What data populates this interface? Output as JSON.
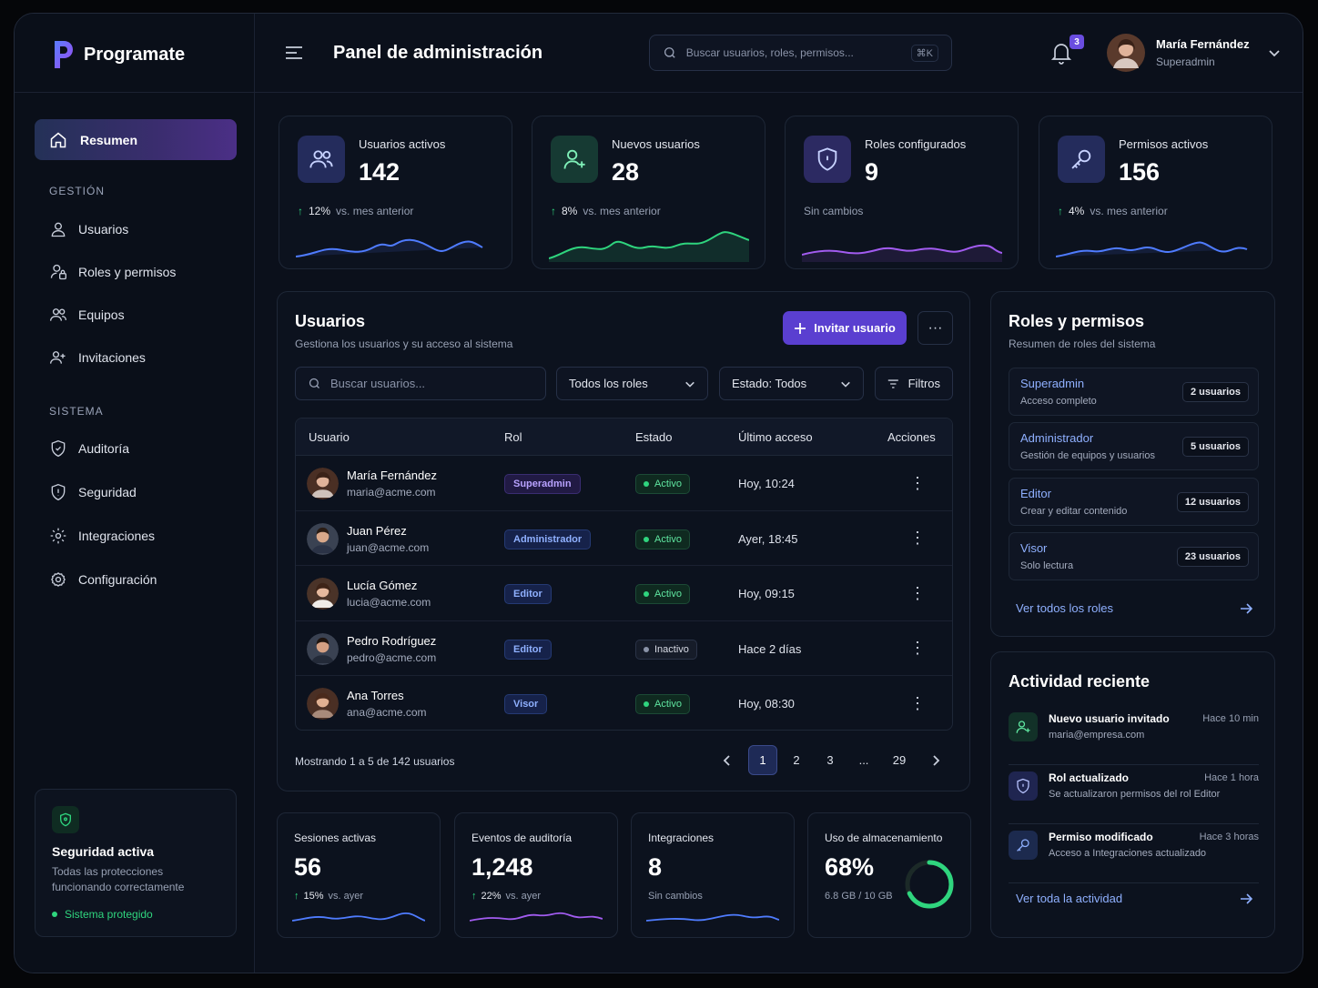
{
  "app": {
    "brand": "Programate",
    "page_title": "Panel de administración"
  },
  "search": {
    "placeholder": "Buscar usuarios, roles, permisos...",
    "shortcut": "⌘K"
  },
  "notifications": {
    "count": "3"
  },
  "user": {
    "name": "María Fernández",
    "role": "Superadmin"
  },
  "sidebar": {
    "active": "Resumen",
    "section_gestion": "GESTIÓN",
    "gestion": [
      "Usuarios",
      "Roles y permisos",
      "Equipos",
      "Invitaciones"
    ],
    "section_sistema": "SISTEMA",
    "sistema": [
      "Auditoría",
      "Seguridad",
      "Integraciones",
      "Configuración"
    ],
    "security_card": {
      "title": "Seguridad activa",
      "subtitle": "Todas las protecciones funcionando correctamente",
      "status": "Sistema protegido"
    }
  },
  "stats": [
    {
      "label": "Usuarios activos",
      "value": "142",
      "pct": "12%",
      "trend": "vs. mes anterior",
      "color": "#4f7cff"
    },
    {
      "label": "Nuevos usuarios",
      "value": "28",
      "pct": "8%",
      "trend": "vs. mes anterior",
      "color": "#2fd57e"
    },
    {
      "label": "Roles configurados",
      "value": "9",
      "pct": "",
      "trend": "Sin cambios",
      "color": "#a25cf0"
    },
    {
      "label": "Permisos activos",
      "value": "156",
      "pct": "4%",
      "trend": "vs. mes anterior",
      "color": "#4f7cff"
    }
  ],
  "users_panel": {
    "title": "Usuarios",
    "subtitle": "Gestiona los usuarios y su acceso al sistema",
    "invite_button": "Invitar usuario",
    "more": "···",
    "search_placeholder": "Buscar usuarios...",
    "role_filter": "Todos los roles",
    "status_filter": "Estado: Todos",
    "filters_button": "Filtros",
    "columns": [
      "Usuario",
      "Rol",
      "Estado",
      "Último acceso",
      "Acciones"
    ],
    "rows": [
      {
        "name": "María Fernández",
        "email": "maria@acme.com",
        "role": "Superadmin",
        "status": "Activo",
        "last_access": "Hoy, 10:24"
      },
      {
        "name": "Juan Pérez",
        "email": "juan@acme.com",
        "role": "Administrador",
        "status": "Activo",
        "last_access": "Ayer, 18:45"
      },
      {
        "name": "Lucía Gómez",
        "email": "lucia@acme.com",
        "role": "Editor",
        "status": "Activo",
        "last_access": "Hoy, 09:15"
      },
      {
        "name": "Pedro Rodríguez",
        "email": "pedro@acme.com",
        "role": "Editor",
        "status": "Inactivo",
        "last_access": "Hace 2 días"
      },
      {
        "name": "Ana Torres",
        "email": "ana@acme.com",
        "role": "Visor",
        "status": "Activo",
        "last_access": "Hoy, 08:30"
      }
    ],
    "showing": "Mostrando 1 a 5 de 142 usuarios",
    "pages": [
      "1",
      "2",
      "3",
      "...",
      "29"
    ],
    "current_page": "1"
  },
  "roles_panel": {
    "title": "Roles y permisos",
    "subtitle": "Resumen de roles del sistema",
    "roles": [
      {
        "name": "Superadmin",
        "desc": "Acceso completo",
        "count": "2 usuarios"
      },
      {
        "name": "Administrador",
        "desc": "Gestión de equipos y usuarios",
        "count": "5 usuarios"
      },
      {
        "name": "Editor",
        "desc": "Crear y editar contenido",
        "count": "12 usuarios"
      },
      {
        "name": "Visor",
        "desc": "Solo lectura",
        "count": "23 usuarios"
      }
    ],
    "view_all": "Ver todos los roles"
  },
  "activity_panel": {
    "title": "Actividad reciente",
    "items": [
      {
        "title": "Nuevo usuario invitado",
        "desc": "maria@empresa.com",
        "time": "Hace 10 min"
      },
      {
        "title": "Rol actualizado",
        "desc": "Se actualizaron permisos del rol Editor",
        "time": "Hace 1 hora"
      },
      {
        "title": "Permiso modificado",
        "desc": "Acceso a Integraciones actualizado",
        "time": "Hace 3 horas"
      }
    ],
    "view_all": "Ver toda la actividad"
  },
  "mini_stats": [
    {
      "label": "Sesiones activas",
      "value": "56",
      "pct": "15%",
      "trend": "vs. ayer"
    },
    {
      "label": "Eventos de auditoría",
      "value": "1,248",
      "pct": "22%",
      "trend": "vs. ayer"
    },
    {
      "label": "Integraciones",
      "value": "8",
      "pct": "",
      "trend": "Sin cambios"
    },
    {
      "label": "Uso de almacenamiento",
      "value": "68%",
      "pct": "",
      "trend": "6.8 GB / 10 GB",
      "fraction": 0.68
    }
  ]
}
